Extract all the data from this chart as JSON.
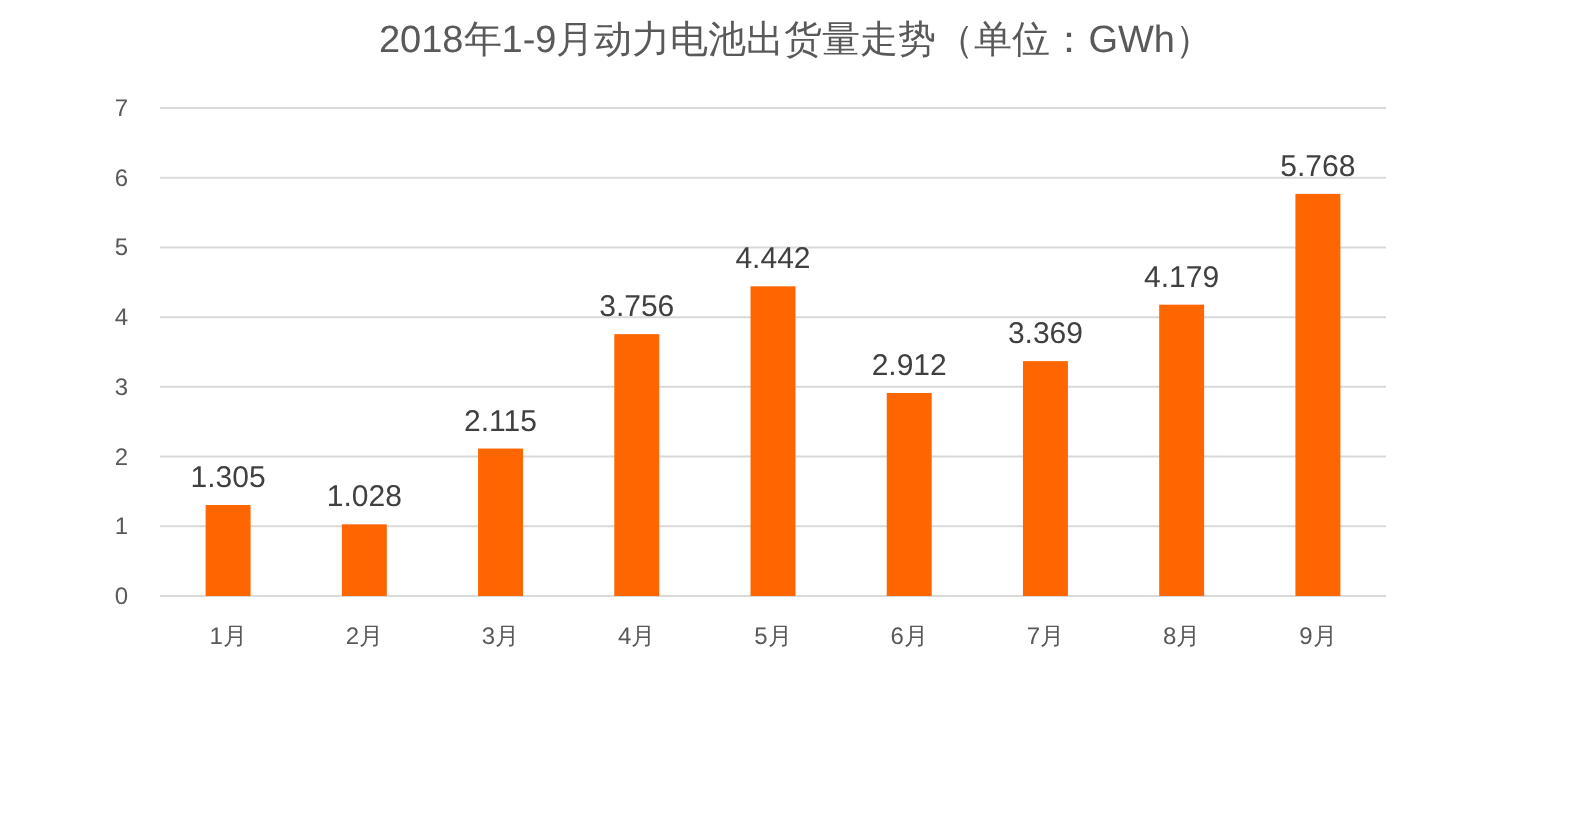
{
  "chart_data": {
    "type": "bar",
    "title": "2018年1-9月动力电池出货量走势（单位：GWh）",
    "categories": [
      "1月",
      "2月",
      "3月",
      "4月",
      "5月",
      "6月",
      "7月",
      "8月",
      "9月"
    ],
    "values": [
      1.305,
      1.028,
      2.115,
      3.756,
      4.442,
      2.912,
      3.369,
      4.179,
      5.768
    ],
    "color": "#ff6600",
    "ylim": [
      0,
      7
    ],
    "yticks": [
      0,
      1,
      2,
      3,
      4,
      5,
      6,
      7
    ],
    "grid": "y",
    "data_labels": true
  }
}
